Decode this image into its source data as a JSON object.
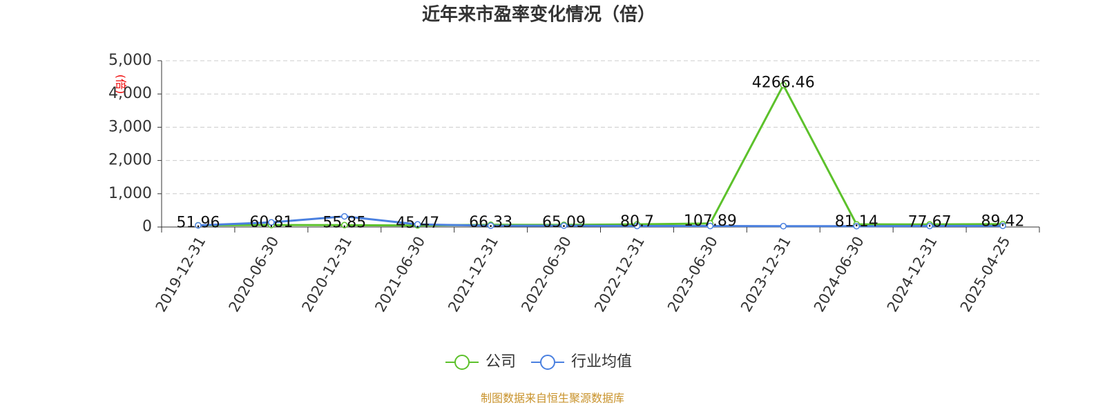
{
  "chart_data": {
    "type": "line",
    "title": "近年来市盈率变化情况（倍）",
    "y_label": "(倍)",
    "categories": [
      "2019-12-31",
      "2020-06-30",
      "2020-12-31",
      "2021-06-30",
      "2021-12-31",
      "2022-06-30",
      "2022-12-31",
      "2023-06-30",
      "2023-12-31",
      "2024-06-30",
      "2024-12-31",
      "2025-04-25"
    ],
    "series": [
      {
        "name": "公司",
        "color": "#5cc12b",
        "values": [
          51.96,
          60.81,
          55.85,
          45.47,
          66.33,
          65.09,
          80.7,
          107.89,
          4266.46,
          81.14,
          77.67,
          89.42
        ]
      },
      {
        "name": "行业均值",
        "color": "#4a80e0",
        "values": [
          50,
          140,
          320,
          80,
          40,
          40,
          30,
          30,
          25,
          25,
          30,
          35
        ]
      }
    ],
    "ylim": [
      0,
      5000
    ],
    "yticks": [
      0,
      {
        "value": 1000,
        "label": "1,000"
      },
      {
        "value": 2000,
        "label": "2,000"
      },
      {
        "value": 3000,
        "label": "3,000"
      },
      {
        "value": 4000,
        "label": "4,000"
      },
      {
        "value": 5000,
        "label": "5,000"
      }
    ],
    "grid": true,
    "source": "制图数据来自恒生聚源数据库"
  }
}
